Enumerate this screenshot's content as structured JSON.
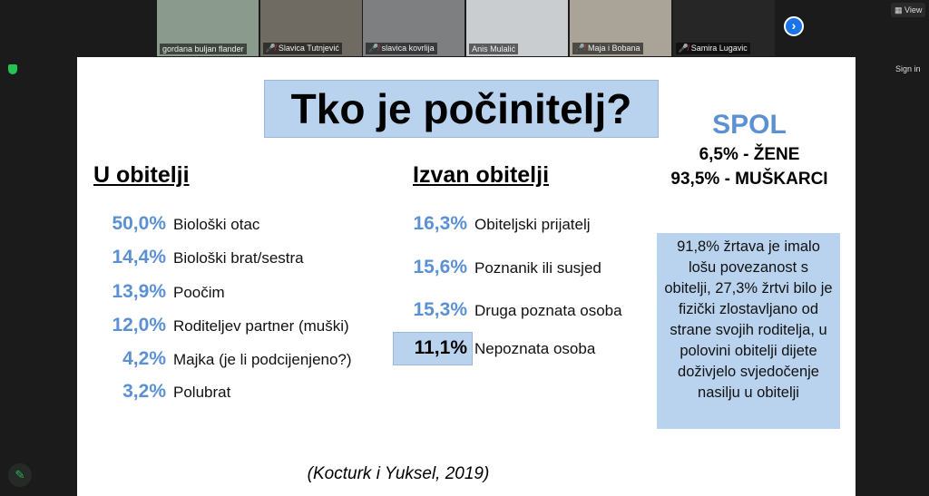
{
  "participants": [
    {
      "name": "gordana buljan flander",
      "muted": false,
      "color": "#8a9a8c"
    },
    {
      "name": "Slavica Tutnjević",
      "muted": true,
      "color": "#6f6a62"
    },
    {
      "name": "slavica kovrlija",
      "muted": true,
      "color": "#7d7f80"
    },
    {
      "name": "Anis Mulalić",
      "muted": false,
      "color": "#c9cdd0"
    },
    {
      "name": "Maja i Bobana",
      "muted": true,
      "color": "#a9a497"
    },
    {
      "name": "Samira Lugavic",
      "muted": true,
      "color": "#262626"
    }
  ],
  "toolbar": {
    "view_label": "View",
    "sign_in_label": "Sign in"
  },
  "slide": {
    "title": "Tko je počinitelj?",
    "family_heading": "U obitelji",
    "family": [
      {
        "pct": "50,0%",
        "label": "Biološki otac"
      },
      {
        "pct": "14,4%",
        "label": "Biološki brat/sestra"
      },
      {
        "pct": "13,9%",
        "label": "Poočim"
      },
      {
        "pct": "12,0%",
        "label": "Roditeljev partner (muški)"
      },
      {
        "pct": "4,2%",
        "label": "Majka (je li podcijenjeno?)"
      },
      {
        "pct": "3,2%",
        "label": "Polubrat"
      }
    ],
    "outside_heading": "Izvan obitelji",
    "outside": [
      {
        "pct": "16,3%",
        "label": "Obiteljski prijatelj"
      },
      {
        "pct": "15,6%",
        "label": "Poznanik ili susjed"
      },
      {
        "pct": "15,3%",
        "label": "Druga poznata osoba"
      },
      {
        "pct": "11,1%",
        "label": "Nepoznata osoba"
      }
    ],
    "gender_heading": "SPOL",
    "women": "6,5% - ŽENE",
    "men": "93,5% - MUŠKARCI",
    "info_box": "91,8% žrtava je imalo lošu  povezanost s obitelji, 27,3% žrtvi bilo je fizički zlostavljano od strane svojih roditelja, u polovini obitelji dijete doživjelo svjedočenje nasilju u obitelji",
    "citation": "(Kocturk i Yuksel, 2019)",
    "colors": {
      "accent": "#5b91d2",
      "box": "#b9d3ef"
    }
  }
}
